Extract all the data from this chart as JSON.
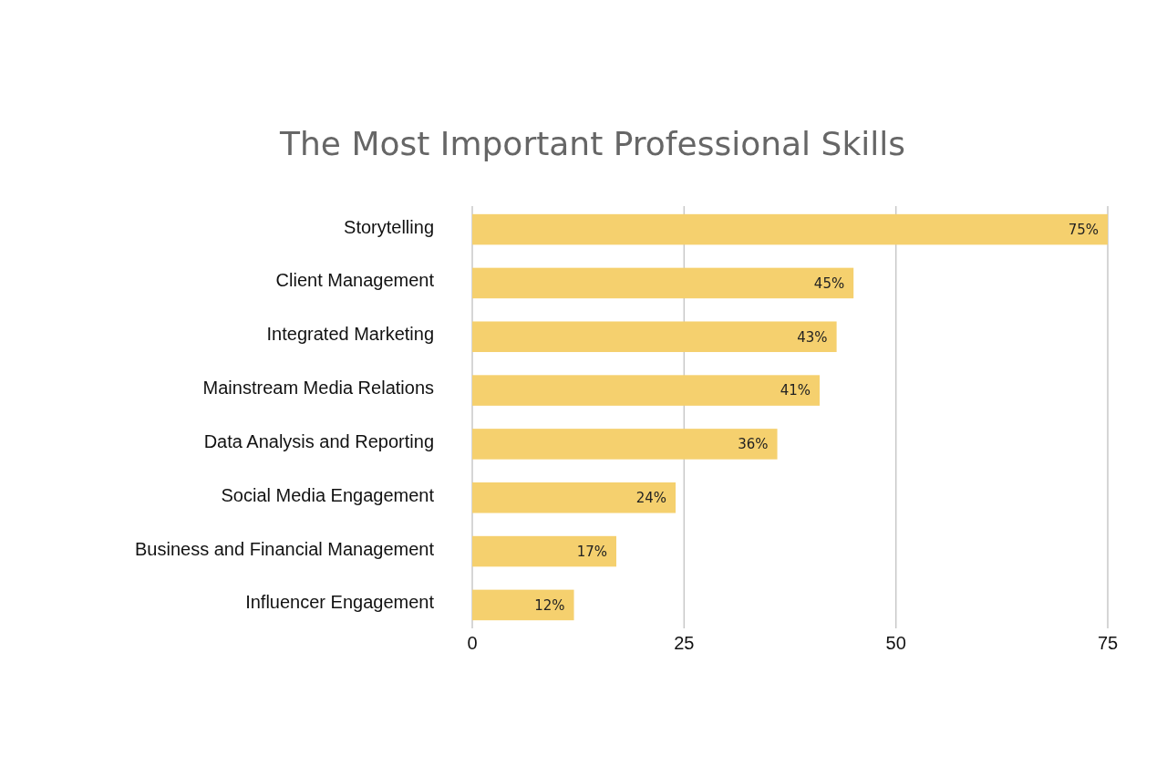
{
  "chart_data": {
    "type": "bar",
    "orientation": "horizontal",
    "title": "The Most Important Professional Skills",
    "categories": [
      "Storytelling",
      "Client Management",
      "Integrated Marketing",
      "Mainstream Media Relations",
      "Data Analysis and Reporting",
      "Social Media Engagement",
      "Business and Financial Management",
      "Influencer Engagement"
    ],
    "values": [
      75,
      45,
      43,
      41,
      36,
      24,
      17,
      12
    ],
    "value_labels": [
      "75%",
      "45%",
      "43%",
      "41%",
      "36%",
      "24%",
      "17%",
      "12%"
    ],
    "color": "#f5d06e",
    "xlim": [
      0,
      75
    ],
    "xticks": [
      0,
      25,
      50,
      75
    ],
    "grid": "x"
  }
}
